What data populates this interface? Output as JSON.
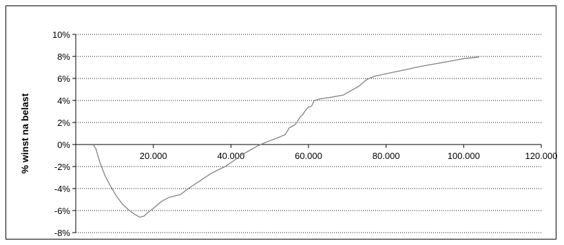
{
  "chart_data": {
    "type": "line",
    "title": "",
    "xlabel": "",
    "ylabel": "% winst na belast",
    "xlim": [
      0,
      120000
    ],
    "ylim": [
      -8,
      10
    ],
    "x_ticks": [
      {
        "value": 20000,
        "label": "20.000"
      },
      {
        "value": 40000,
        "label": "40.000"
      },
      {
        "value": 60000,
        "label": "60.000"
      },
      {
        "value": 80000,
        "label": "80.000"
      },
      {
        "value": 100000,
        "label": "100.000"
      },
      {
        "value": 120000,
        "label": "120.000"
      }
    ],
    "y_ticks": [
      {
        "value": 10,
        "label": "10%"
      },
      {
        "value": 8,
        "label": "8%"
      },
      {
        "value": 6,
        "label": "6%"
      },
      {
        "value": 4,
        "label": "4%"
      },
      {
        "value": 2,
        "label": "2%"
      },
      {
        "value": 0,
        "label": "0%"
      },
      {
        "value": -2,
        "label": "-2%"
      },
      {
        "value": -4,
        "label": "-4%"
      },
      {
        "value": -6,
        "label": "-6%"
      },
      {
        "value": -8,
        "label": "-8%"
      }
    ],
    "grid": "horizontal dotted",
    "legend": "none",
    "line_color": "#808080",
    "series": [
      {
        "points": [
          [
            4500,
            0
          ],
          [
            5200,
            -0.4
          ],
          [
            6200,
            -1.6
          ],
          [
            7500,
            -2.8
          ],
          [
            9000,
            -3.8
          ],
          [
            10500,
            -4.7
          ],
          [
            12000,
            -5.4
          ],
          [
            13500,
            -5.9
          ],
          [
            15000,
            -6.3
          ],
          [
            16500,
            -6.6
          ],
          [
            17600,
            -6.5
          ],
          [
            18500,
            -6.2
          ],
          [
            20000,
            -5.8
          ],
          [
            22000,
            -5.2
          ],
          [
            24000,
            -4.8
          ],
          [
            27000,
            -4.55
          ],
          [
            29000,
            -4.0
          ],
          [
            32000,
            -3.3
          ],
          [
            35000,
            -2.6
          ],
          [
            38500,
            -2.0
          ],
          [
            41000,
            -1.4
          ],
          [
            43000,
            -0.9
          ],
          [
            45000,
            -0.5
          ],
          [
            47000,
            -0.1
          ],
          [
            49000,
            0.2
          ],
          [
            52000,
            0.6
          ],
          [
            54000,
            0.9
          ],
          [
            55000,
            1.5
          ],
          [
            56500,
            1.8
          ],
          [
            57000,
            2.0
          ],
          [
            57800,
            2.5
          ],
          [
            58500,
            2.7
          ],
          [
            59000,
            3.0
          ],
          [
            60000,
            3.4
          ],
          [
            60800,
            3.5
          ],
          [
            61500,
            4.0
          ],
          [
            63000,
            4.15
          ],
          [
            66000,
            4.3
          ],
          [
            69000,
            4.5
          ],
          [
            71000,
            4.9
          ],
          [
            73000,
            5.3
          ],
          [
            75000,
            5.9
          ],
          [
            77000,
            6.2
          ],
          [
            81000,
            6.5
          ],
          [
            85000,
            6.8
          ],
          [
            89000,
            7.1
          ],
          [
            93000,
            7.35
          ],
          [
            97000,
            7.6
          ],
          [
            100000,
            7.8
          ],
          [
            104000,
            7.95
          ]
        ]
      }
    ]
  }
}
